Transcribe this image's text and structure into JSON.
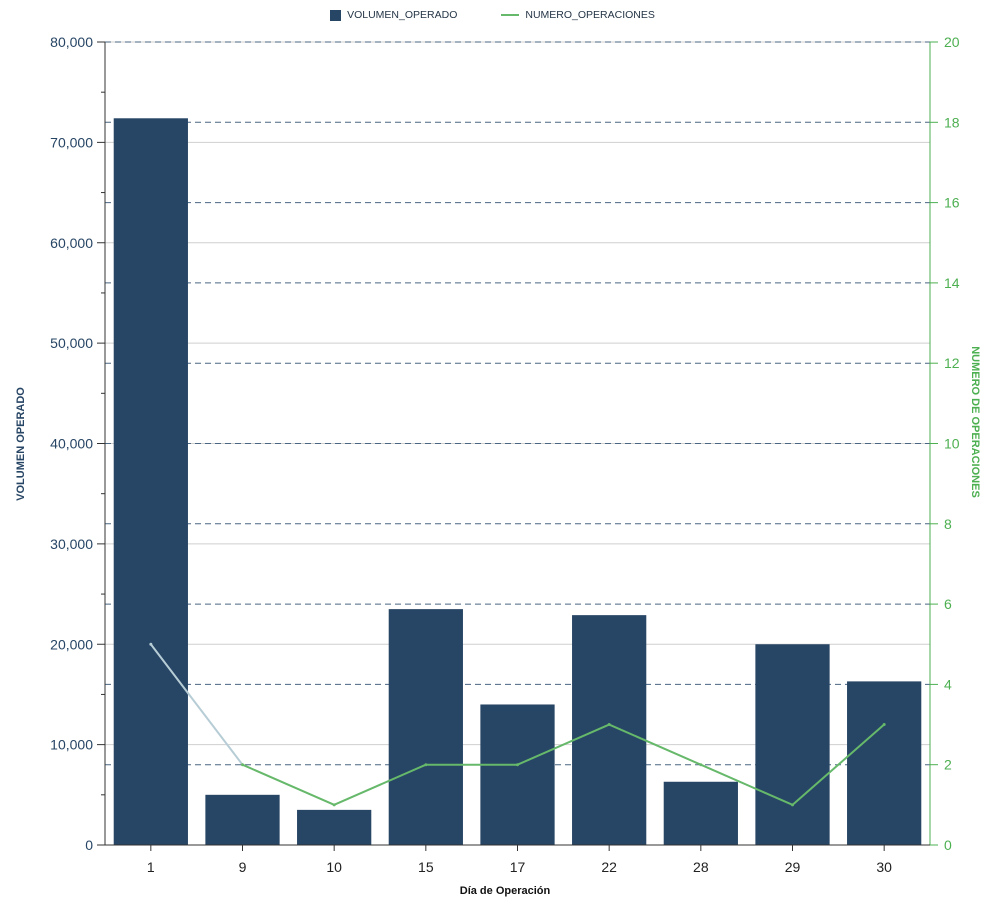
{
  "colors": {
    "bar": "#274565",
    "line": "#66b86a",
    "line_first_segment": "#b7cdd6",
    "left_axis_text": "#274565",
    "right_axis": "#4caf50",
    "grid_solid": "#cfcfcf",
    "grid_dashed": "#4b6682"
  },
  "legend": {
    "bar_label": "VOLUMEN_OPERADO",
    "line_label": "NUMERO_OPERACIONES"
  },
  "chart_data": {
    "type": "bar",
    "categories": [
      "1",
      "9",
      "10",
      "15",
      "17",
      "22",
      "28",
      "29",
      "30"
    ],
    "series": [
      {
        "name": "VOLUMEN_OPERADO",
        "type": "bar",
        "axis": "left",
        "values": [
          72400,
          5000,
          3500,
          23500,
          14000,
          22900,
          6300,
          20000,
          16300
        ]
      },
      {
        "name": "NUMERO_OPERACIONES",
        "type": "line",
        "axis": "right",
        "values": [
          5,
          2,
          1,
          2,
          2,
          3,
          2,
          1,
          3
        ]
      }
    ],
    "xlabel": "Día de Operación",
    "ylabel": "VOLUMEN OPERADO",
    "y2label": "NUMERO DE OPERACIONES",
    "ylim": [
      0,
      80000
    ],
    "y2lim": [
      0,
      20
    ],
    "yticks": [
      "0",
      "10,000",
      "20,000",
      "30,000",
      "40,000",
      "50,000",
      "60,000",
      "70,000",
      "80,000"
    ],
    "y2ticks": [
      "0",
      "2",
      "4",
      "6",
      "8",
      "10",
      "12",
      "14",
      "16",
      "18",
      "20"
    ],
    "grid": true,
    "legend_position": "top-center"
  }
}
